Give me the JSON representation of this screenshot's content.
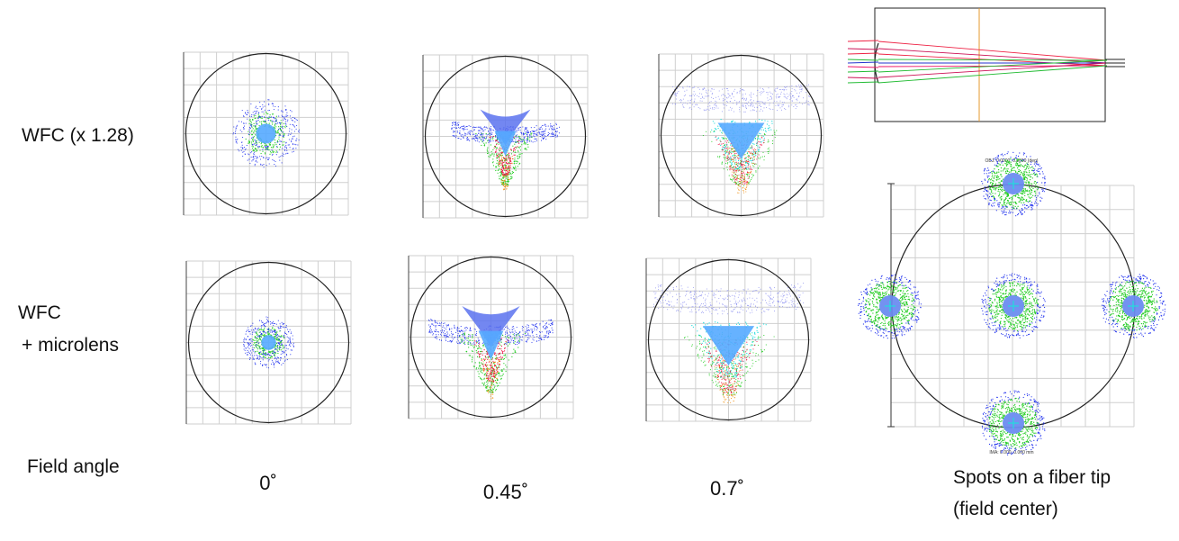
{
  "row_labels": {
    "wfc": "WFC (x 1.28)",
    "wfc_micro_line1": "WFC",
    "wfc_micro_line2": "+ microlens",
    "field_angle": "Field angle"
  },
  "field_angles": [
    "0˚",
    "0.45˚",
    "0.7˚"
  ],
  "caption": {
    "line1": "Spots on a fiber tip",
    "line2": "(field center)"
  },
  "fiber_label_top": "OBJ: 0.0000, 0.0000 (deg)",
  "fiber_label_bottom": "IMA: 0.000, 0.000 mm",
  "colors": {
    "grid": "#cfcfcf",
    "circle": "#222222",
    "blue": "#2233ee",
    "light_blue": "#55aaff",
    "green": "#22cc22",
    "red": "#ee1144",
    "orange": "#ee8800",
    "cyan": "#22dddd",
    "optical_axis": "#e69a2e"
  },
  "spots": [
    {
      "row": "wfc",
      "field": "0˚",
      "shape": "round"
    },
    {
      "row": "wfc",
      "field": "0.45˚",
      "shape": "comet"
    },
    {
      "row": "wfc",
      "field": "0.7˚",
      "shape": "comet-wide"
    },
    {
      "row": "wfc_micro",
      "field": "0˚",
      "shape": "round"
    },
    {
      "row": "wfc_micro",
      "field": "0.45˚",
      "shape": "comet"
    },
    {
      "row": "wfc_micro",
      "field": "0.7˚",
      "shape": "comet-wide"
    }
  ]
}
